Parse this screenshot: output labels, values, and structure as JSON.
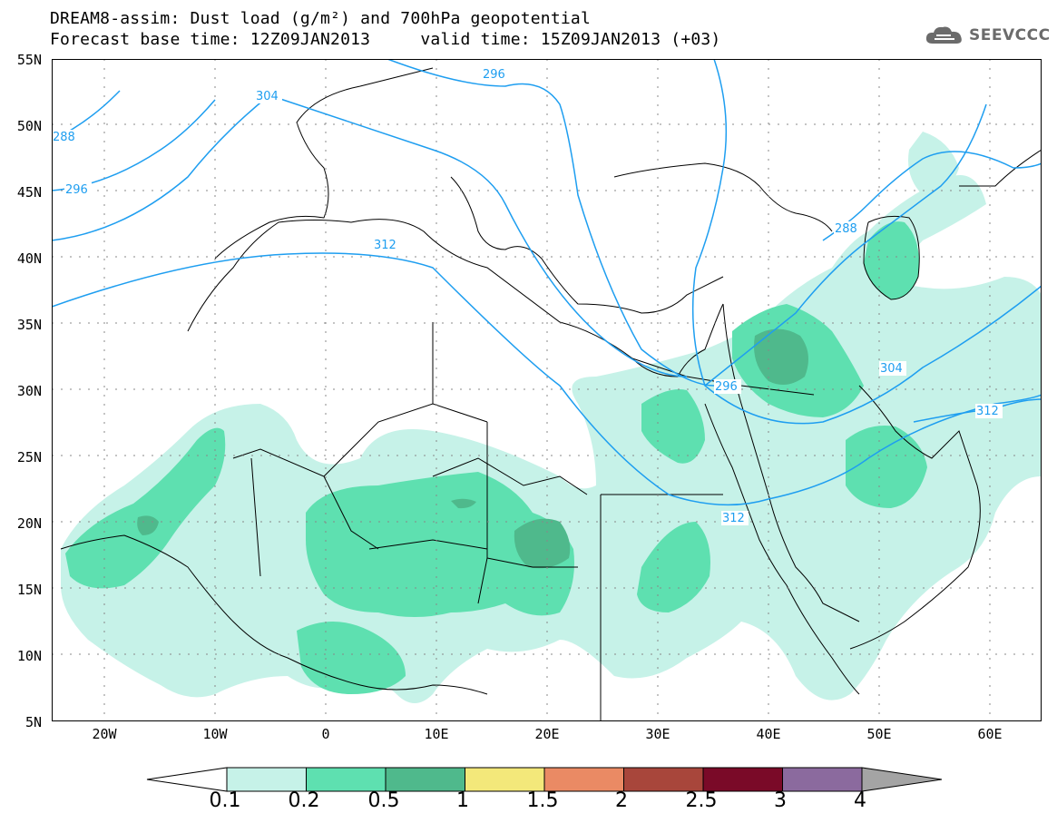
{
  "title": {
    "line1": "DREAM8-assim: Dust load (g/m²) and 700hPa geopotential",
    "line2": "Forecast base time: 12Z09JAN2013     valid time: 15Z09JAN2013 (+03)"
  },
  "logo": {
    "text": "SEEVCCC",
    "icon": "cloud-icon"
  },
  "axes": {
    "lat_labels": [
      "55N",
      "50N",
      "45N",
      "40N",
      "35N",
      "30N",
      "25N",
      "20N",
      "15N",
      "10N",
      "5N"
    ],
    "lon_labels": [
      "20W",
      "10W",
      "0",
      "10E",
      "20E",
      "30E",
      "40E",
      "50E",
      "60E"
    ]
  },
  "colorbar": {
    "labels": [
      "0.1",
      "0.2",
      "0.5",
      "1",
      "1.5",
      "2",
      "2.5",
      "3",
      "4"
    ],
    "colors": [
      "#ffffff",
      "#c6f2e8",
      "#5ee0b0",
      "#4fb98c",
      "#f3e87a",
      "#ea8a64",
      "#a8463b",
      "#7a0a28",
      "#8b6a9e",
      "#a4a4a4"
    ]
  },
  "contours": {
    "color": "#1e9ef0",
    "labels": [
      "288",
      "296",
      "304",
      "312",
      "296",
      "288",
      "296",
      "304",
      "312",
      "312"
    ]
  },
  "dust_colors": {
    "light": "#c6f2e8",
    "medium": "#5ee0b0",
    "dark": "#4fb98c",
    "darkest": "#4a9e82"
  }
}
